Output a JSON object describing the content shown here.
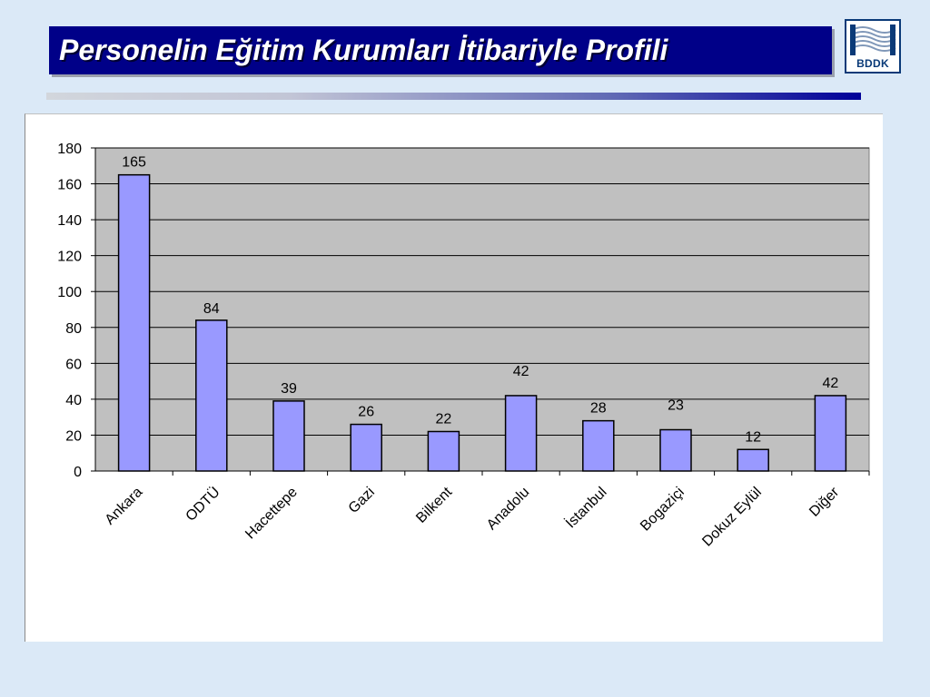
{
  "slide": {
    "title": "Personelin Eğitim Kurumları İtibariyle Profili",
    "logo_text": "BDDK",
    "colors": {
      "background": "#dbe9f7",
      "title_bar": "#000088",
      "plot_area": "#c0c0c0",
      "bar_fill": "#9999ff",
      "bar_stroke": "#000000"
    }
  },
  "chart_data": {
    "type": "bar",
    "categories": [
      "Ankara",
      "ODTÜ",
      "Hacettepe",
      "Gazi",
      "Bilkent",
      "Anadolu",
      "İstanbul",
      "Bogaziçi",
      "Dokuz Eylül",
      "Diğer"
    ],
    "values": [
      165,
      84,
      39,
      26,
      22,
      42,
      28,
      23,
      12,
      42
    ],
    "title": "",
    "xlabel": "",
    "ylabel": "",
    "ylim": [
      0,
      180
    ],
    "yticks": [
      0,
      20,
      40,
      60,
      80,
      100,
      120,
      140,
      160,
      180
    ],
    "grid": true,
    "legend": "none",
    "data_labels": true
  }
}
